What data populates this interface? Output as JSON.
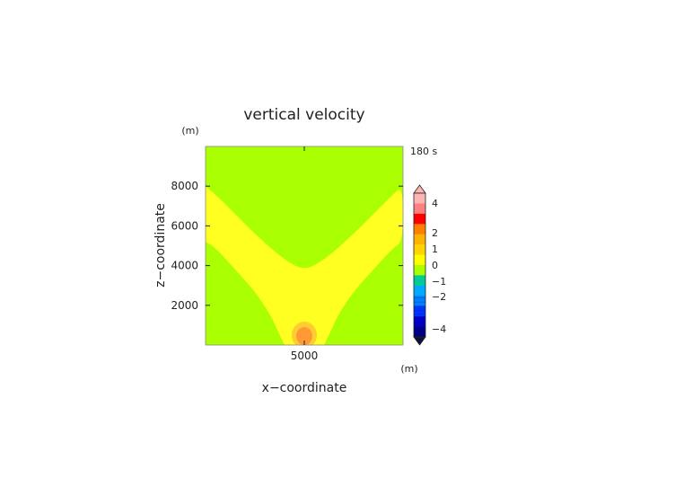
{
  "chart_data": {
    "type": "heatmap",
    "title": "vertical velocity",
    "time_label": "180 s",
    "xlabel": "x−coordinate",
    "ylabel": "z−coordinate",
    "x_unit": "(m)",
    "y_unit": "(m)",
    "xlim": [
      0,
      10000
    ],
    "ylim": [
      0,
      10000
    ],
    "x_ticks": [
      5000
    ],
    "x_tick_labels": [
      "5000"
    ],
    "y_ticks": [
      2000,
      4000,
      6000,
      8000
    ],
    "y_tick_labels": [
      "2000",
      "4000",
      "6000",
      "8000"
    ],
    "grid": false,
    "regions": [
      {
        "level": "0 to 0.5",
        "color": "#aaff00",
        "description": "background"
      },
      {
        "level": "0.5 to 1",
        "color": "#ffff22",
        "description": "V-shaped band"
      },
      {
        "level": "1 to 1.5",
        "color": "#ffcc33",
        "center": [
          5000,
          500
        ]
      },
      {
        "level": "1.5 to 2",
        "color": "#ff9933",
        "center": [
          5000,
          450
        ]
      }
    ],
    "band_left_edge_z": [
      [
        0,
        8000
      ],
      [
        500,
        7600
      ],
      [
        1500,
        6600
      ],
      [
        2500,
        5600
      ],
      [
        3500,
        4700
      ],
      [
        4300,
        4100
      ],
      [
        5000,
        3800
      ]
    ],
    "band_right_edge_z": [
      [
        0,
        5200
      ],
      [
        500,
        4900
      ],
      [
        1500,
        3800
      ],
      [
        2500,
        2700
      ],
      [
        3300,
        1500
      ],
      [
        3700,
        600
      ],
      [
        4000,
        0
      ]
    ],
    "colorbar": {
      "ticks": [
        4,
        2,
        1,
        0,
        -1,
        -2,
        -4
      ],
      "tick_labels": [
        "4",
        "2",
        "1",
        "0",
        "−1",
        "−2",
        "−4"
      ],
      "colors_top_to_bottom": [
        "#ffb4b4",
        "#ff8080",
        "#ff0000",
        "#ff7f00",
        "#ffb300",
        "#ffd400",
        "#ffff00",
        "#aaff00",
        "#00cc99",
        "#00aaff",
        "#0080ff",
        "#0033ff",
        "#0000cc",
        "#000088"
      ],
      "extend": "both"
    }
  }
}
